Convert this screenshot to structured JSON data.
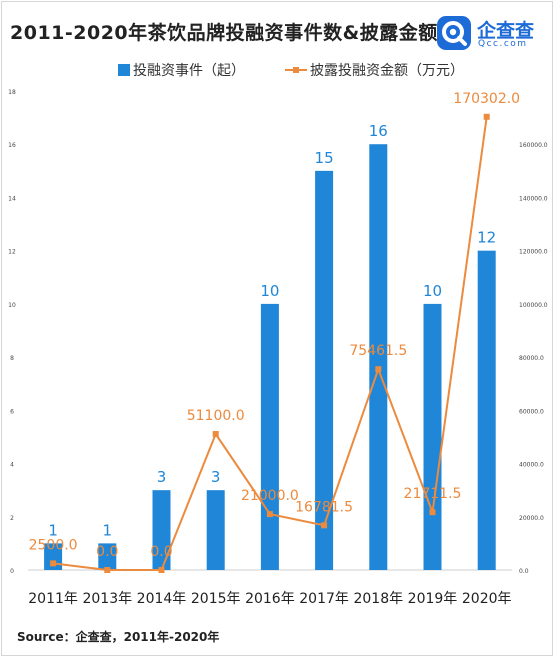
{
  "title": "2011-2020年茶饮品牌投融资事件数&披露金额",
  "logo": {
    "name_cn": "企查查",
    "name_en": "Qcc.com",
    "icon": "qcc-logo-icon"
  },
  "source": "Source：企查查，2011年-2020年",
  "colors": {
    "bar": "#1f86d8",
    "line": "#ec8a3d",
    "bar_label": "#1f86d8",
    "line_label": "#ec8a3d"
  },
  "chart_data": {
    "type": "bar",
    "categories": [
      "2011年",
      "2013年",
      "2014年",
      "2015年",
      "2016年",
      "2017年",
      "2018年",
      "2019年",
      "2020年"
    ],
    "series": [
      {
        "name": "投融资事件（起）",
        "type": "bar",
        "axis": "left",
        "values": [
          1,
          1,
          3,
          3,
          10,
          15,
          16,
          10,
          12
        ],
        "labels": [
          "1",
          "1",
          "3",
          "3",
          "10",
          "15",
          "16",
          "10",
          "12"
        ]
      },
      {
        "name": "披露投融资金额（万元）",
        "type": "line",
        "axis": "right",
        "values": [
          2500.0,
          0.0,
          0.0,
          51100.0,
          21000.0,
          16781.5,
          75461.5,
          21711.5,
          170302.0
        ],
        "labels": [
          "2500.0",
          "0.0",
          "0.0",
          "51100.0",
          "21000.0",
          "16781.5",
          "75461.5",
          "21711.5",
          "170302.0"
        ]
      }
    ],
    "y_left": {
      "ylim": [
        0,
        18
      ],
      "ticks": [
        "0",
        "2",
        "4",
        "6",
        "8",
        "10",
        "12",
        "14",
        "16",
        "18"
      ]
    },
    "y_right": {
      "ylim": [
        0,
        180000
      ],
      "ticks": [
        "0.0",
        "20000.0",
        "40000.0",
        "60000.0",
        "80000.0",
        "100000.0",
        "120000.0",
        "140000.0",
        "160000.0"
      ]
    },
    "grid": false,
    "legend": "top-center"
  }
}
